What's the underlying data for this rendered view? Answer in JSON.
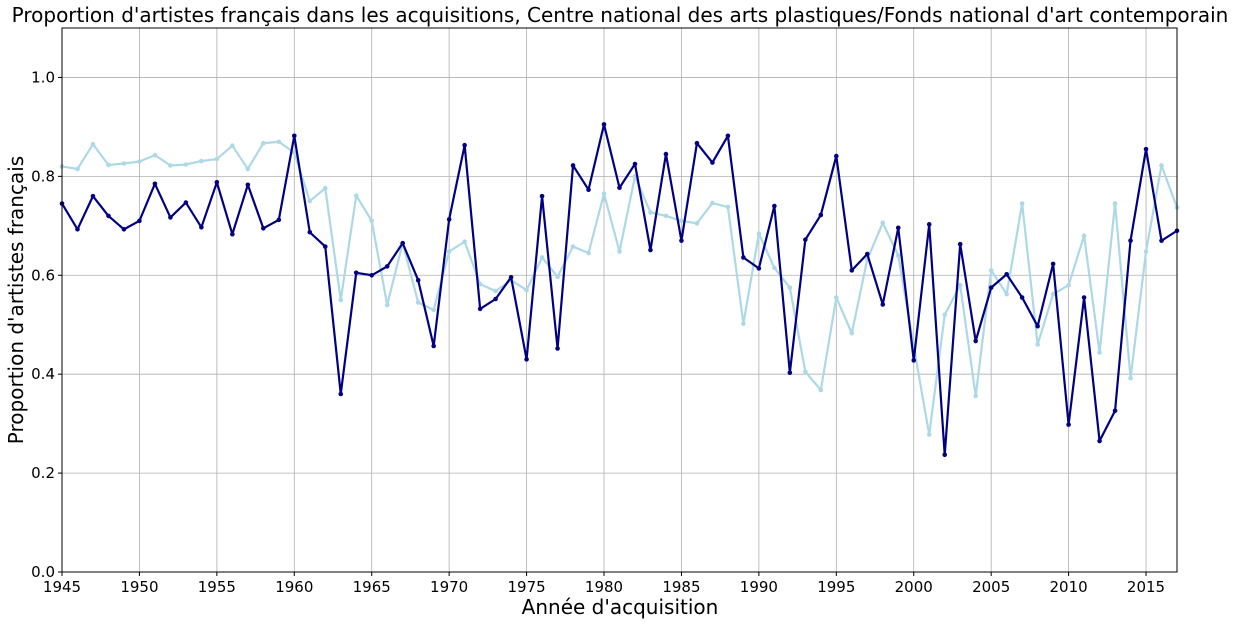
{
  "chart_data": {
    "type": "line",
    "title": "Proportion d'artistes français dans les acquisitions, Centre national des arts plastiques/Fonds national d'art contemporain",
    "xlabel": "Année d'acquisition",
    "ylabel": "Proportion d'artistes français",
    "xlim": [
      1945,
      2017
    ],
    "ylim": [
      0,
      1.1
    ],
    "xticks": [
      1945,
      1950,
      1955,
      1960,
      1965,
      1970,
      1975,
      1980,
      1985,
      1990,
      1995,
      2000,
      2005,
      2010,
      2015
    ],
    "yticks": [
      0.0,
      0.2,
      0.4,
      0.6,
      0.8,
      1.0
    ],
    "ytick_labels": [
      "0.0",
      "0.2",
      "0.4",
      "0.6",
      "0.8",
      "1.0"
    ],
    "grid": true,
    "x": [
      1945,
      1946,
      1947,
      1948,
      1949,
      1950,
      1951,
      1952,
      1953,
      1954,
      1955,
      1956,
      1957,
      1958,
      1959,
      1960,
      1961,
      1962,
      1963,
      1964,
      1965,
      1966,
      1967,
      1968,
      1969,
      1970,
      1971,
      1972,
      1973,
      1974,
      1975,
      1976,
      1977,
      1978,
      1979,
      1980,
      1981,
      1982,
      1983,
      1984,
      1985,
      1986,
      1987,
      1988,
      1989,
      1990,
      1991,
      1992,
      1993,
      1994,
      1995,
      1996,
      1997,
      1998,
      1999,
      2000,
      2001,
      2002,
      2003,
      2004,
      2005,
      2006,
      2007,
      2008,
      2009,
      2010,
      2011,
      2012,
      2013,
      2014,
      2015,
      2016,
      2017
    ],
    "series": [
      {
        "color": "#add8e6",
        "values": [
          0.82,
          0.815,
          0.865,
          0.823,
          0.826,
          0.83,
          0.843,
          0.822,
          0.824,
          0.831,
          0.835,
          0.862,
          0.815,
          0.867,
          0.87,
          0.848,
          0.75,
          0.776,
          0.55,
          0.761,
          0.71,
          0.54,
          0.665,
          0.545,
          0.53,
          0.648,
          0.668,
          0.582,
          0.568,
          0.59,
          0.57,
          0.636,
          0.597,
          0.658,
          0.645,
          0.765,
          0.648,
          0.8,
          0.727,
          0.72,
          0.71,
          0.705,
          0.746,
          0.738,
          0.502,
          0.684,
          0.615,
          0.575,
          0.405,
          0.368,
          0.555,
          0.483,
          0.632,
          0.706,
          0.64,
          0.456,
          0.278,
          0.52,
          0.58,
          0.356,
          0.61,
          0.562,
          0.745,
          0.46,
          0.562,
          0.58,
          0.68,
          0.444,
          0.745,
          0.392,
          0.648,
          0.822,
          0.737
        ]
      },
      {
        "color": "#000080",
        "values": [
          0.745,
          0.693,
          0.76,
          0.72,
          0.693,
          0.71,
          0.785,
          0.717,
          0.747,
          0.697,
          0.788,
          0.683,
          0.783,
          0.695,
          0.712,
          0.882,
          0.687,
          0.658,
          0.36,
          0.605,
          0.6,
          0.618,
          0.665,
          0.59,
          0.457,
          0.713,
          0.863,
          0.532,
          0.552,
          0.596,
          0.43,
          0.76,
          0.452,
          0.822,
          0.773,
          0.905,
          0.777,
          0.825,
          0.651,
          0.845,
          0.67,
          0.867,
          0.828,
          0.882,
          0.636,
          0.614,
          0.74,
          0.403,
          0.672,
          0.722,
          0.841,
          0.61,
          0.643,
          0.541,
          0.696,
          0.428,
          0.703,
          0.237,
          0.663,
          0.467,
          0.575,
          0.602,
          0.555,
          0.497,
          0.623,
          0.298,
          0.555,
          0.265,
          0.326,
          0.67,
          0.855,
          0.67,
          0.69
        ]
      }
    ]
  }
}
